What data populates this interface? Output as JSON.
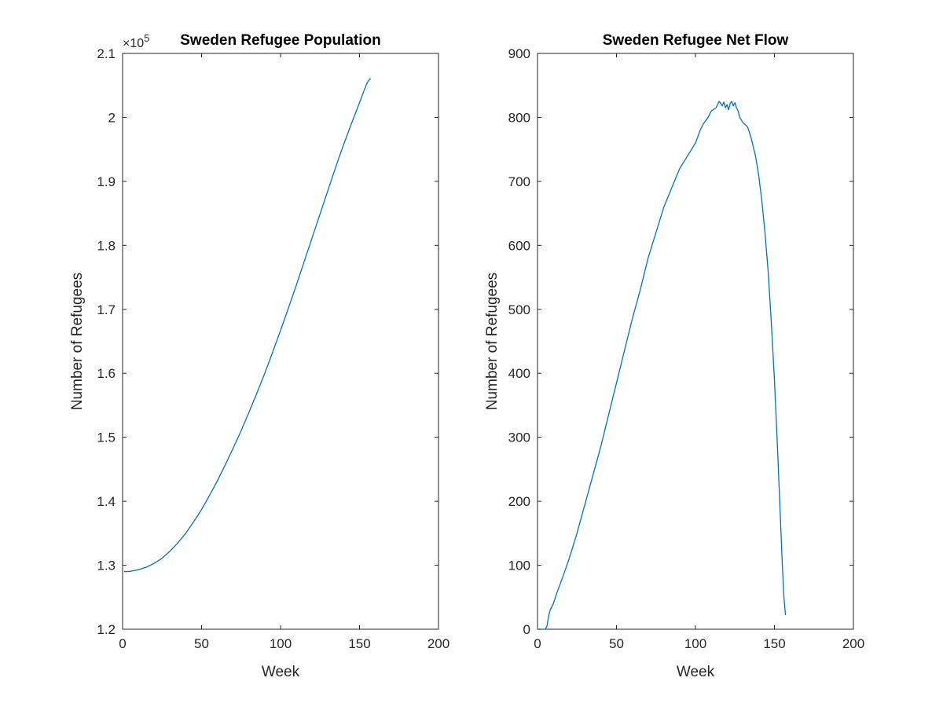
{
  "chart_data": [
    {
      "type": "line",
      "title": "Sweden Refugee Population",
      "xlabel": "Week",
      "ylabel": "Number of Refugees",
      "xlim": [
        0,
        200
      ],
      "ylim": [
        120000,
        210000
      ],
      "xticks": [
        0,
        50,
        100,
        150,
        200
      ],
      "yticks": [
        120000,
        130000,
        140000,
        150000,
        160000,
        170000,
        180000,
        190000,
        200000,
        210000
      ],
      "ytick_labels": [
        "1.2",
        "1.3",
        "1.4",
        "1.5",
        "1.6",
        "1.7",
        "1.8",
        "1.9",
        "2",
        "2.1"
      ],
      "xtick_labels": [
        "0",
        "50",
        "100",
        "150",
        "200"
      ],
      "y_exponent_prefix": "×10",
      "y_exponent": "5",
      "grid": false,
      "series": [
        {
          "color": "#0072bd",
          "x": [
            1,
            5,
            10,
            15,
            20,
            25,
            30,
            35,
            40,
            45,
            50,
            55,
            60,
            65,
            70,
            75,
            80,
            85,
            90,
            95,
            100,
            105,
            110,
            115,
            120,
            125,
            130,
            135,
            140,
            145,
            150,
            153,
            155,
            157
          ],
          "y": [
            129000,
            129050,
            129300,
            129700,
            130300,
            131100,
            132200,
            133500,
            135000,
            136800,
            138700,
            140900,
            143200,
            145700,
            148300,
            151000,
            153900,
            156900,
            160000,
            163300,
            166700,
            170200,
            173800,
            177500,
            181200,
            184900,
            188600,
            192300,
            195800,
            199100,
            202300,
            204300,
            205500,
            206100
          ]
        }
      ]
    },
    {
      "type": "line",
      "title": "Sweden Refugee Net Flow",
      "xlabel": "Week",
      "ylabel": "Number of Refugees",
      "xlim": [
        0,
        200
      ],
      "ylim": [
        0,
        900
      ],
      "xticks": [
        0,
        50,
        100,
        150,
        200
      ],
      "yticks": [
        0,
        100,
        200,
        300,
        400,
        500,
        600,
        700,
        800,
        900
      ],
      "ytick_labels": [
        "0",
        "100",
        "200",
        "300",
        "400",
        "500",
        "600",
        "700",
        "800",
        "900"
      ],
      "xtick_labels": [
        "0",
        "50",
        "100",
        "150",
        "200"
      ],
      "grid": false,
      "series": [
        {
          "color": "#0072bd",
          "x": [
            1,
            4,
            5,
            6,
            7,
            8,
            10,
            12,
            15,
            20,
            25,
            30,
            35,
            40,
            45,
            50,
            55,
            60,
            65,
            70,
            75,
            80,
            85,
            90,
            95,
            100,
            103,
            105,
            108,
            110,
            113,
            115,
            116,
            117,
            118,
            119,
            120,
            121,
            122,
            123,
            124,
            125,
            126,
            127,
            128,
            130,
            133,
            135,
            138,
            140,
            142,
            144,
            146,
            148,
            150,
            152,
            153,
            154,
            155,
            156,
            157
          ],
          "y": [
            0,
            0,
            0,
            5,
            20,
            30,
            40,
            55,
            75,
            110,
            150,
            195,
            240,
            285,
            335,
            385,
            435,
            485,
            530,
            580,
            620,
            660,
            690,
            720,
            740,
            760,
            780,
            790,
            800,
            810,
            815,
            825,
            822,
            818,
            824,
            815,
            820,
            812,
            822,
            825,
            818,
            823,
            815,
            810,
            800,
            792,
            785,
            770,
            740,
            710,
            670,
            620,
            560,
            480,
            390,
            280,
            220,
            160,
            100,
            50,
            22
          ]
        }
      ]
    }
  ]
}
